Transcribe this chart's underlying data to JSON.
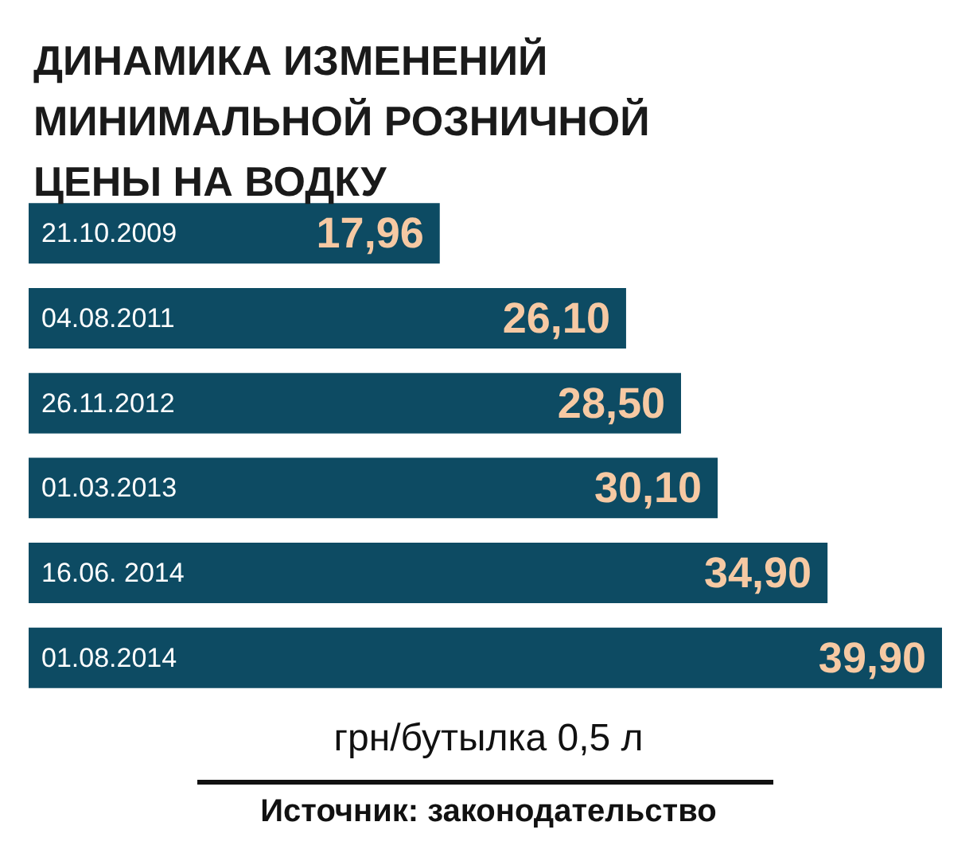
{
  "chart_data": {
    "type": "bar",
    "orientation": "horizontal",
    "title": "ДИНАМИКА ИЗМЕНЕНИЙ МИНИМАЛЬНОЙ РОЗНИЧНОЙ ЦЕНЫ НА ВОДКУ",
    "categories": [
      "21.10.2009",
      "04.08.2011",
      "26.11.2012",
      "01.03.2013",
      "16.06. 2014",
      "01.08.2014"
    ],
    "values": [
      17.96,
      26.1,
      28.5,
      30.1,
      34.9,
      39.9
    ],
    "value_labels": [
      "17,96",
      "26,10",
      "28,50",
      "30,10",
      "34,90",
      "39,90"
    ],
    "color": "#0d4b63",
    "xlim": [
      0,
      39.9
    ],
    "tick_labels": "y",
    "xlabel": "грн/бутылка 0,5 л",
    "annotations": [
      "Источник: законодательство"
    ]
  }
}
